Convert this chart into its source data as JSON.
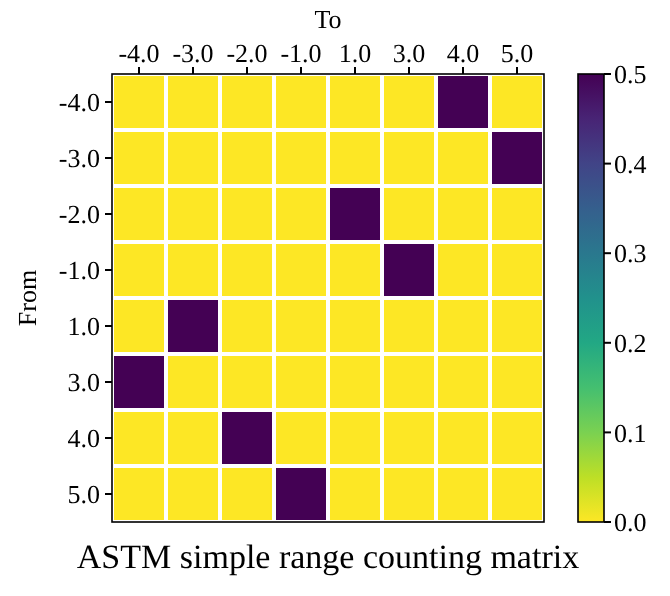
{
  "chart_data": {
    "type": "heatmap",
    "title": "ASTM simple range counting matrix",
    "xlabel": "To",
    "ylabel": "From",
    "categories": [
      "-4.0",
      "-3.0",
      "-2.0",
      "-1.0",
      "1.0",
      "3.0",
      "4.0",
      "5.0"
    ],
    "y_categories": [
      "-4.0",
      "-3.0",
      "-2.0",
      "-1.0",
      "1.0",
      "3.0",
      "4.0",
      "5.0"
    ],
    "cells": [
      [
        0,
        0,
        0,
        0,
        0,
        0,
        0.5,
        0
      ],
      [
        0,
        0,
        0,
        0,
        0,
        0,
        0,
        0.5
      ],
      [
        0,
        0,
        0,
        0,
        0.5,
        0,
        0,
        0
      ],
      [
        0,
        0,
        0,
        0,
        0,
        0.5,
        0,
        0
      ],
      [
        0,
        0.5,
        0,
        0,
        0,
        0,
        0,
        0
      ],
      [
        0.5,
        0,
        0,
        0,
        0,
        0,
        0,
        0
      ],
      [
        0,
        0,
        0.5,
        0,
        0,
        0,
        0,
        0
      ],
      [
        0,
        0,
        0,
        0.5,
        0,
        0,
        0,
        0
      ]
    ],
    "clim": [
      0,
      0.5
    ],
    "cticks": [
      {
        "value": 0,
        "label": "0.0"
      },
      0.1,
      0.2,
      0.3,
      0.4,
      0.5
    ]
  }
}
